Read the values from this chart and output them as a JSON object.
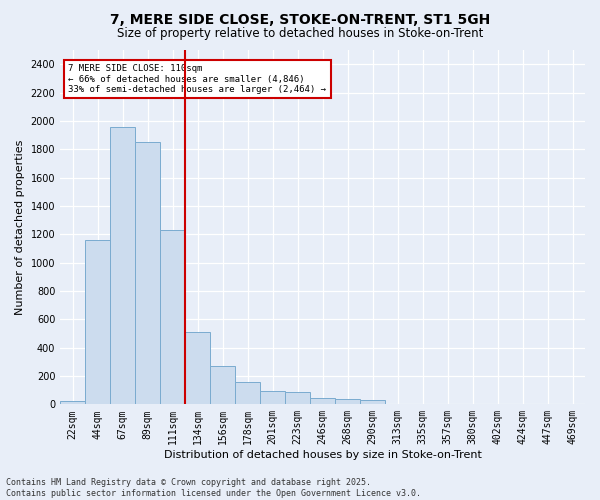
{
  "title": "7, MERE SIDE CLOSE, STOKE-ON-TRENT, ST1 5GH",
  "subtitle": "Size of property relative to detached houses in Stoke-on-Trent",
  "xlabel": "Distribution of detached houses by size in Stoke-on-Trent",
  "ylabel": "Number of detached properties",
  "categories": [
    "22sqm",
    "44sqm",
    "67sqm",
    "89sqm",
    "111sqm",
    "134sqm",
    "156sqm",
    "178sqm",
    "201sqm",
    "223sqm",
    "246sqm",
    "268sqm",
    "290sqm",
    "313sqm",
    "335sqm",
    "357sqm",
    "380sqm",
    "402sqm",
    "424sqm",
    "447sqm",
    "469sqm"
  ],
  "values": [
    25,
    1160,
    1960,
    1850,
    1230,
    510,
    270,
    160,
    95,
    90,
    45,
    40,
    30,
    5,
    3,
    2,
    1,
    1,
    0,
    0,
    0
  ],
  "bar_color": "#ccdcee",
  "bar_edge_color": "#7aabcf",
  "vline_x_index": 4,
  "vline_color": "#cc0000",
  "annotation_text": "7 MERE SIDE CLOSE: 110sqm\n← 66% of detached houses are smaller (4,846)\n33% of semi-detached houses are larger (2,464) →",
  "annotation_box_color": "#ffffff",
  "annotation_box_edge": "#cc0000",
  "ylim": [
    0,
    2500
  ],
  "yticks": [
    0,
    200,
    400,
    600,
    800,
    1000,
    1200,
    1400,
    1600,
    1800,
    2000,
    2200,
    2400
  ],
  "footer_text": "Contains HM Land Registry data © Crown copyright and database right 2025.\nContains public sector information licensed under the Open Government Licence v3.0.",
  "bg_color": "#e8eef8",
  "plot_bg_color": "#e8eef8",
  "grid_color": "#ffffff",
  "title_fontsize": 10,
  "subtitle_fontsize": 8.5,
  "tick_fontsize": 7,
  "label_fontsize": 8,
  "footer_fontsize": 6,
  "annotation_fontsize": 6.5
}
